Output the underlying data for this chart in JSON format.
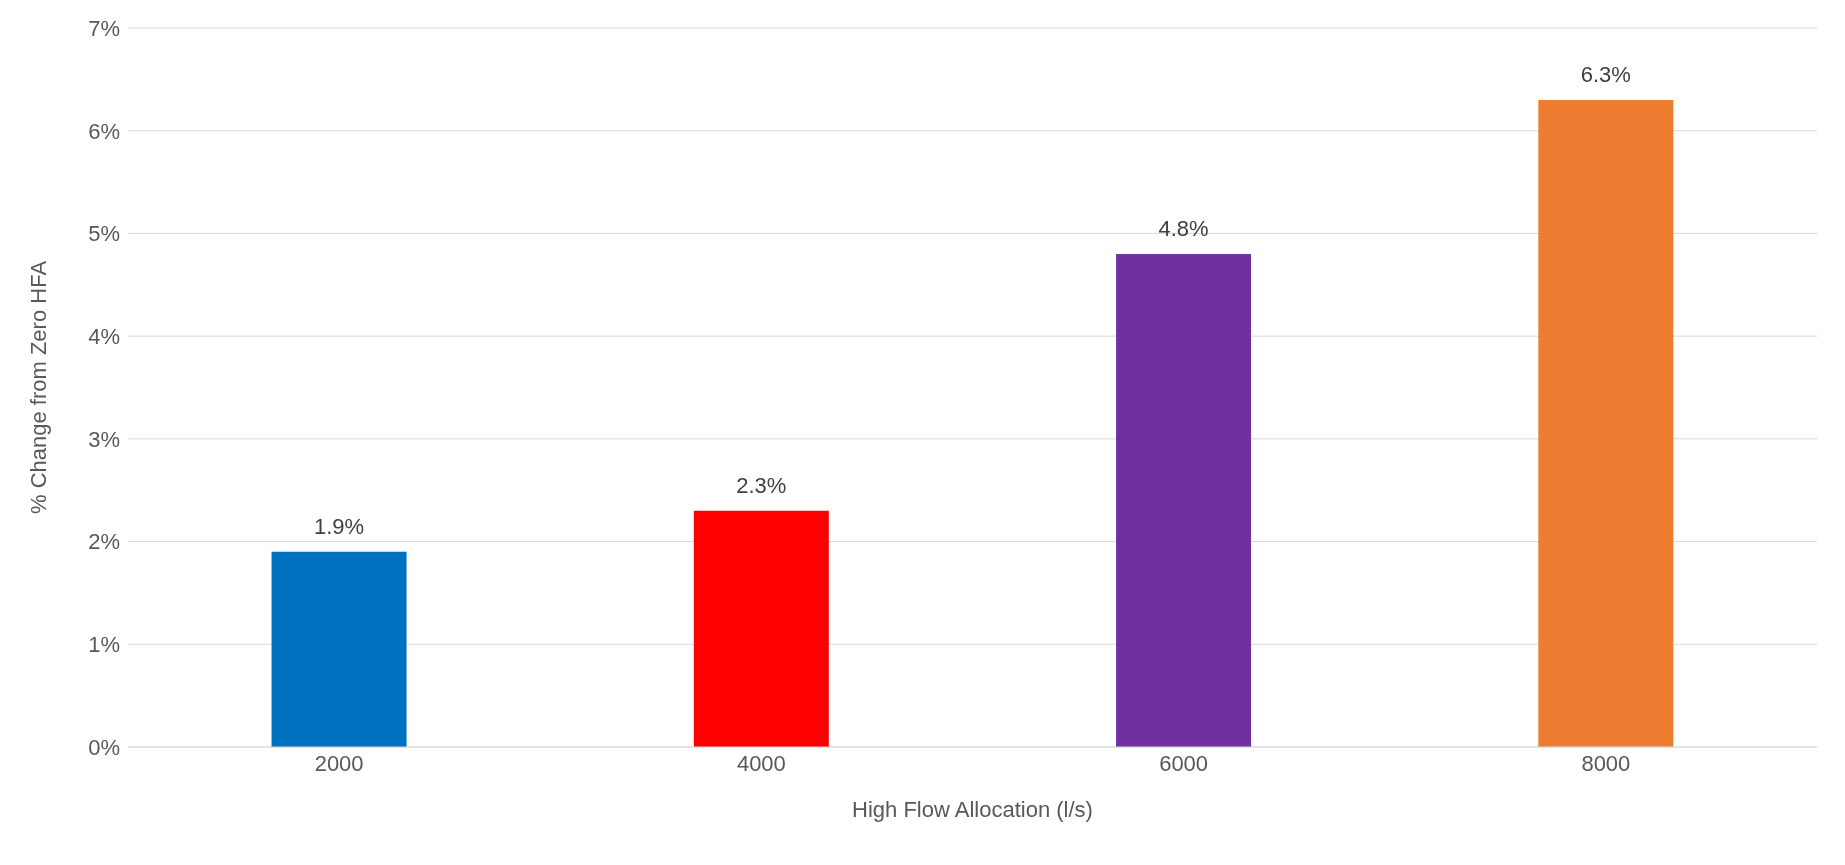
{
  "chart_data": {
    "type": "bar",
    "xlabel": "High Flow Allocation (l/s)",
    "ylabel": "% Change from Zero HFA",
    "categories": [
      "2000",
      "4000",
      "6000",
      "8000"
    ],
    "values": [
      1.9,
      2.3,
      4.8,
      6.3
    ],
    "colors": [
      "#0070c0",
      "#ff0000",
      "#7030a0",
      "#ed7d31"
    ],
    "value_labels": [
      "1.9%",
      "2.3%",
      "4.8%",
      "6.3%"
    ],
    "ylim": [
      0,
      7
    ],
    "yticks": [
      {
        "value": 0,
        "label": "0%"
      },
      {
        "value": 1,
        "label": "1%"
      },
      {
        "value": 2,
        "label": "2%"
      },
      {
        "value": 3,
        "label": "3%"
      },
      {
        "value": 4,
        "label": "4%"
      },
      {
        "value": 5,
        "label": "5%"
      },
      {
        "value": 6,
        "label": "6%"
      },
      {
        "value": 7,
        "label": "7%"
      }
    ],
    "grid": "y"
  }
}
